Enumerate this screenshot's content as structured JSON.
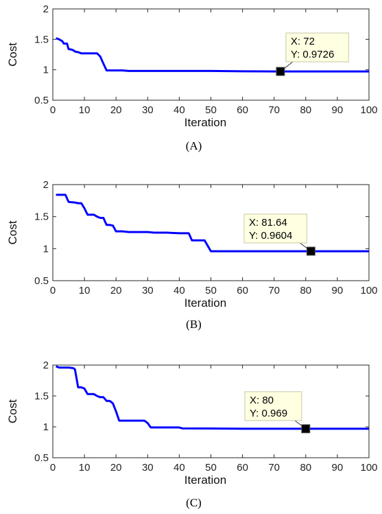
{
  "chart_data": [
    {
      "type": "line",
      "caption": "(A)",
      "xlabel": "Iteration",
      "ylabel": "Cost",
      "xlim": [
        0,
        100
      ],
      "ylim": [
        0.5,
        2
      ],
      "xticks": [
        "0",
        "10",
        "20",
        "30",
        "40",
        "50",
        "60",
        "70",
        "80",
        "90",
        "100"
      ],
      "yticks": [
        "0.5",
        "1",
        "1.5",
        "2"
      ],
      "line_color": "#0000ff",
      "series": [
        {
          "x": [
            1,
            2,
            3,
            3.5,
            4,
            4.5,
            5,
            6,
            6.5,
            7,
            8,
            9,
            10,
            11,
            12,
            13,
            14,
            15,
            16,
            17,
            18,
            20,
            22,
            24,
            30,
            40,
            50,
            60,
            70,
            80,
            90,
            100
          ],
          "y": [
            1.52,
            1.5,
            1.47,
            1.43,
            1.43,
            1.43,
            1.34,
            1.33,
            1.32,
            1.3,
            1.29,
            1.27,
            1.27,
            1.27,
            1.27,
            1.27,
            1.27,
            1.22,
            1.1,
            0.99,
            0.99,
            0.99,
            0.99,
            0.98,
            0.98,
            0.98,
            0.98,
            0.975,
            0.9726,
            0.9726,
            0.9726,
            0.9726
          ]
        }
      ],
      "datatip": {
        "x": 72,
        "y": 0.9726,
        "line1": "X: 72",
        "line2": "Y: 0.9726",
        "side": "upper-right"
      }
    },
    {
      "type": "line",
      "caption": "(B)",
      "xlabel": "Iteration",
      "ylabel": "Cost",
      "xlim": [
        0,
        100
      ],
      "ylim": [
        0.5,
        2
      ],
      "xticks": [
        "0",
        "10",
        "20",
        "30",
        "40",
        "50",
        "60",
        "70",
        "80",
        "90",
        "100"
      ],
      "yticks": [
        "0.5",
        "1",
        "1.5",
        "2"
      ],
      "line_color": "#0000ff",
      "series": [
        {
          "x": [
            1,
            4,
            5,
            7,
            8,
            9,
            10,
            11,
            13,
            14,
            15,
            16,
            17,
            18,
            19,
            20,
            22,
            24,
            26,
            30,
            32,
            36,
            40,
            43,
            44,
            47,
            48,
            50,
            52,
            60,
            70,
            80,
            90,
            100
          ],
          "y": [
            1.84,
            1.84,
            1.73,
            1.72,
            1.71,
            1.71,
            1.63,
            1.53,
            1.53,
            1.5,
            1.48,
            1.48,
            1.37,
            1.37,
            1.36,
            1.27,
            1.27,
            1.26,
            1.26,
            1.26,
            1.25,
            1.25,
            1.24,
            1.24,
            1.13,
            1.13,
            1.13,
            0.96,
            0.96,
            0.96,
            0.96,
            0.96,
            0.96,
            0.96
          ]
        }
      ],
      "datatip": {
        "x": 81.64,
        "y": 0.9604,
        "line1": "X: 81.64",
        "line2": "Y: 0.9604",
        "side": "upper-left"
      }
    },
    {
      "type": "line",
      "caption": "(C)",
      "xlabel": "Iteration",
      "ylabel": "Cost",
      "xlim": [
        0,
        100
      ],
      "ylim": [
        0.5,
        2
      ],
      "xticks": [
        "0",
        "10",
        "20",
        "30",
        "40",
        "50",
        "60",
        "70",
        "80",
        "90",
        "100"
      ],
      "yticks": [
        "0.5",
        "1",
        "1.5",
        "2"
      ],
      "line_color": "#0000ff",
      "series": [
        {
          "x": [
            1,
            2,
            5,
            6.5,
            7,
            8,
            9,
            10,
            11,
            12,
            13,
            14,
            15,
            16,
            17,
            18,
            19,
            20,
            21,
            22,
            25,
            29,
            30,
            31,
            35,
            40,
            41,
            50,
            60,
            70,
            80,
            90,
            100
          ],
          "y": [
            1.98,
            1.96,
            1.96,
            1.95,
            1.93,
            1.64,
            1.64,
            1.62,
            1.53,
            1.53,
            1.53,
            1.5,
            1.48,
            1.48,
            1.42,
            1.42,
            1.38,
            1.25,
            1.1,
            1.1,
            1.1,
            1.1,
            1.06,
            0.99,
            0.99,
            0.99,
            0.975,
            0.973,
            0.969,
            0.969,
            0.969,
            0.969,
            0.969
          ]
        }
      ],
      "datatip": {
        "x": 80,
        "y": 0.969,
        "line1": "X: 80",
        "line2": "Y: 0.969",
        "side": "upper-left"
      }
    }
  ]
}
